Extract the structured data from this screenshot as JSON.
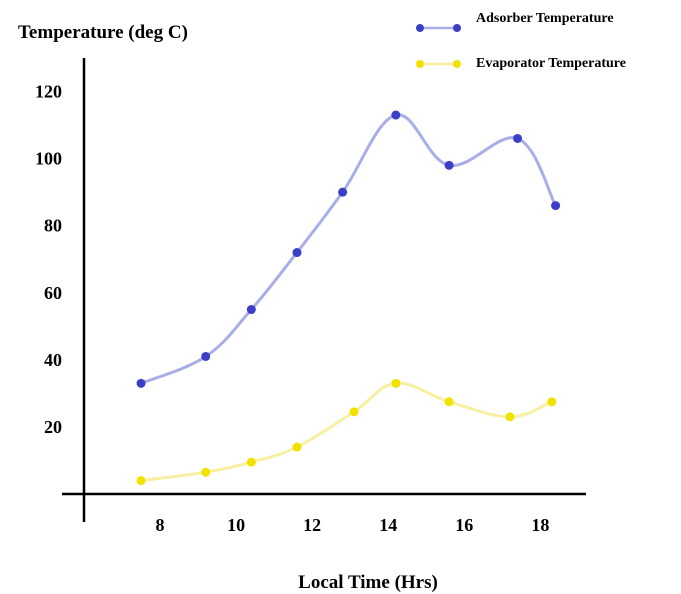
{
  "chart_data": {
    "type": "line",
    "ylabel": "Temperature (deg C)",
    "xlabel": "Local Time (Hrs)",
    "xlim": [
      6.0,
      19.2
    ],
    "ylim": [
      0,
      130
    ],
    "x_ticks": [
      8,
      10,
      12,
      14,
      16,
      18
    ],
    "y_ticks": [
      20,
      40,
      60,
      80,
      100,
      120
    ],
    "grid": false,
    "legend_position": "top-right",
    "series": [
      {
        "name": "Adsorber Temperature",
        "color": "#3b3fc8",
        "line_color": "#a9aee8",
        "points": [
          {
            "x": 7.5,
            "y": 33
          },
          {
            "x": 9.2,
            "y": 41
          },
          {
            "x": 10.4,
            "y": 55
          },
          {
            "x": 11.6,
            "y": 72
          },
          {
            "x": 12.8,
            "y": 90
          },
          {
            "x": 14.2,
            "y": 113
          },
          {
            "x": 15.6,
            "y": 98
          },
          {
            "x": 17.4,
            "y": 106
          },
          {
            "x": 18.4,
            "y": 86
          }
        ]
      },
      {
        "name": "Evaporator Temperature",
        "color": "#f2e200",
        "line_color": "#f6f0a0",
        "points": [
          {
            "x": 7.5,
            "y": 4
          },
          {
            "x": 9.2,
            "y": 6.5
          },
          {
            "x": 10.4,
            "y": 9.5
          },
          {
            "x": 11.6,
            "y": 14
          },
          {
            "x": 13.1,
            "y": 24.5
          },
          {
            "x": 14.2,
            "y": 33
          },
          {
            "x": 15.6,
            "y": 27.5
          },
          {
            "x": 17.2,
            "y": 23
          },
          {
            "x": 18.3,
            "y": 27.5
          }
        ]
      }
    ]
  }
}
